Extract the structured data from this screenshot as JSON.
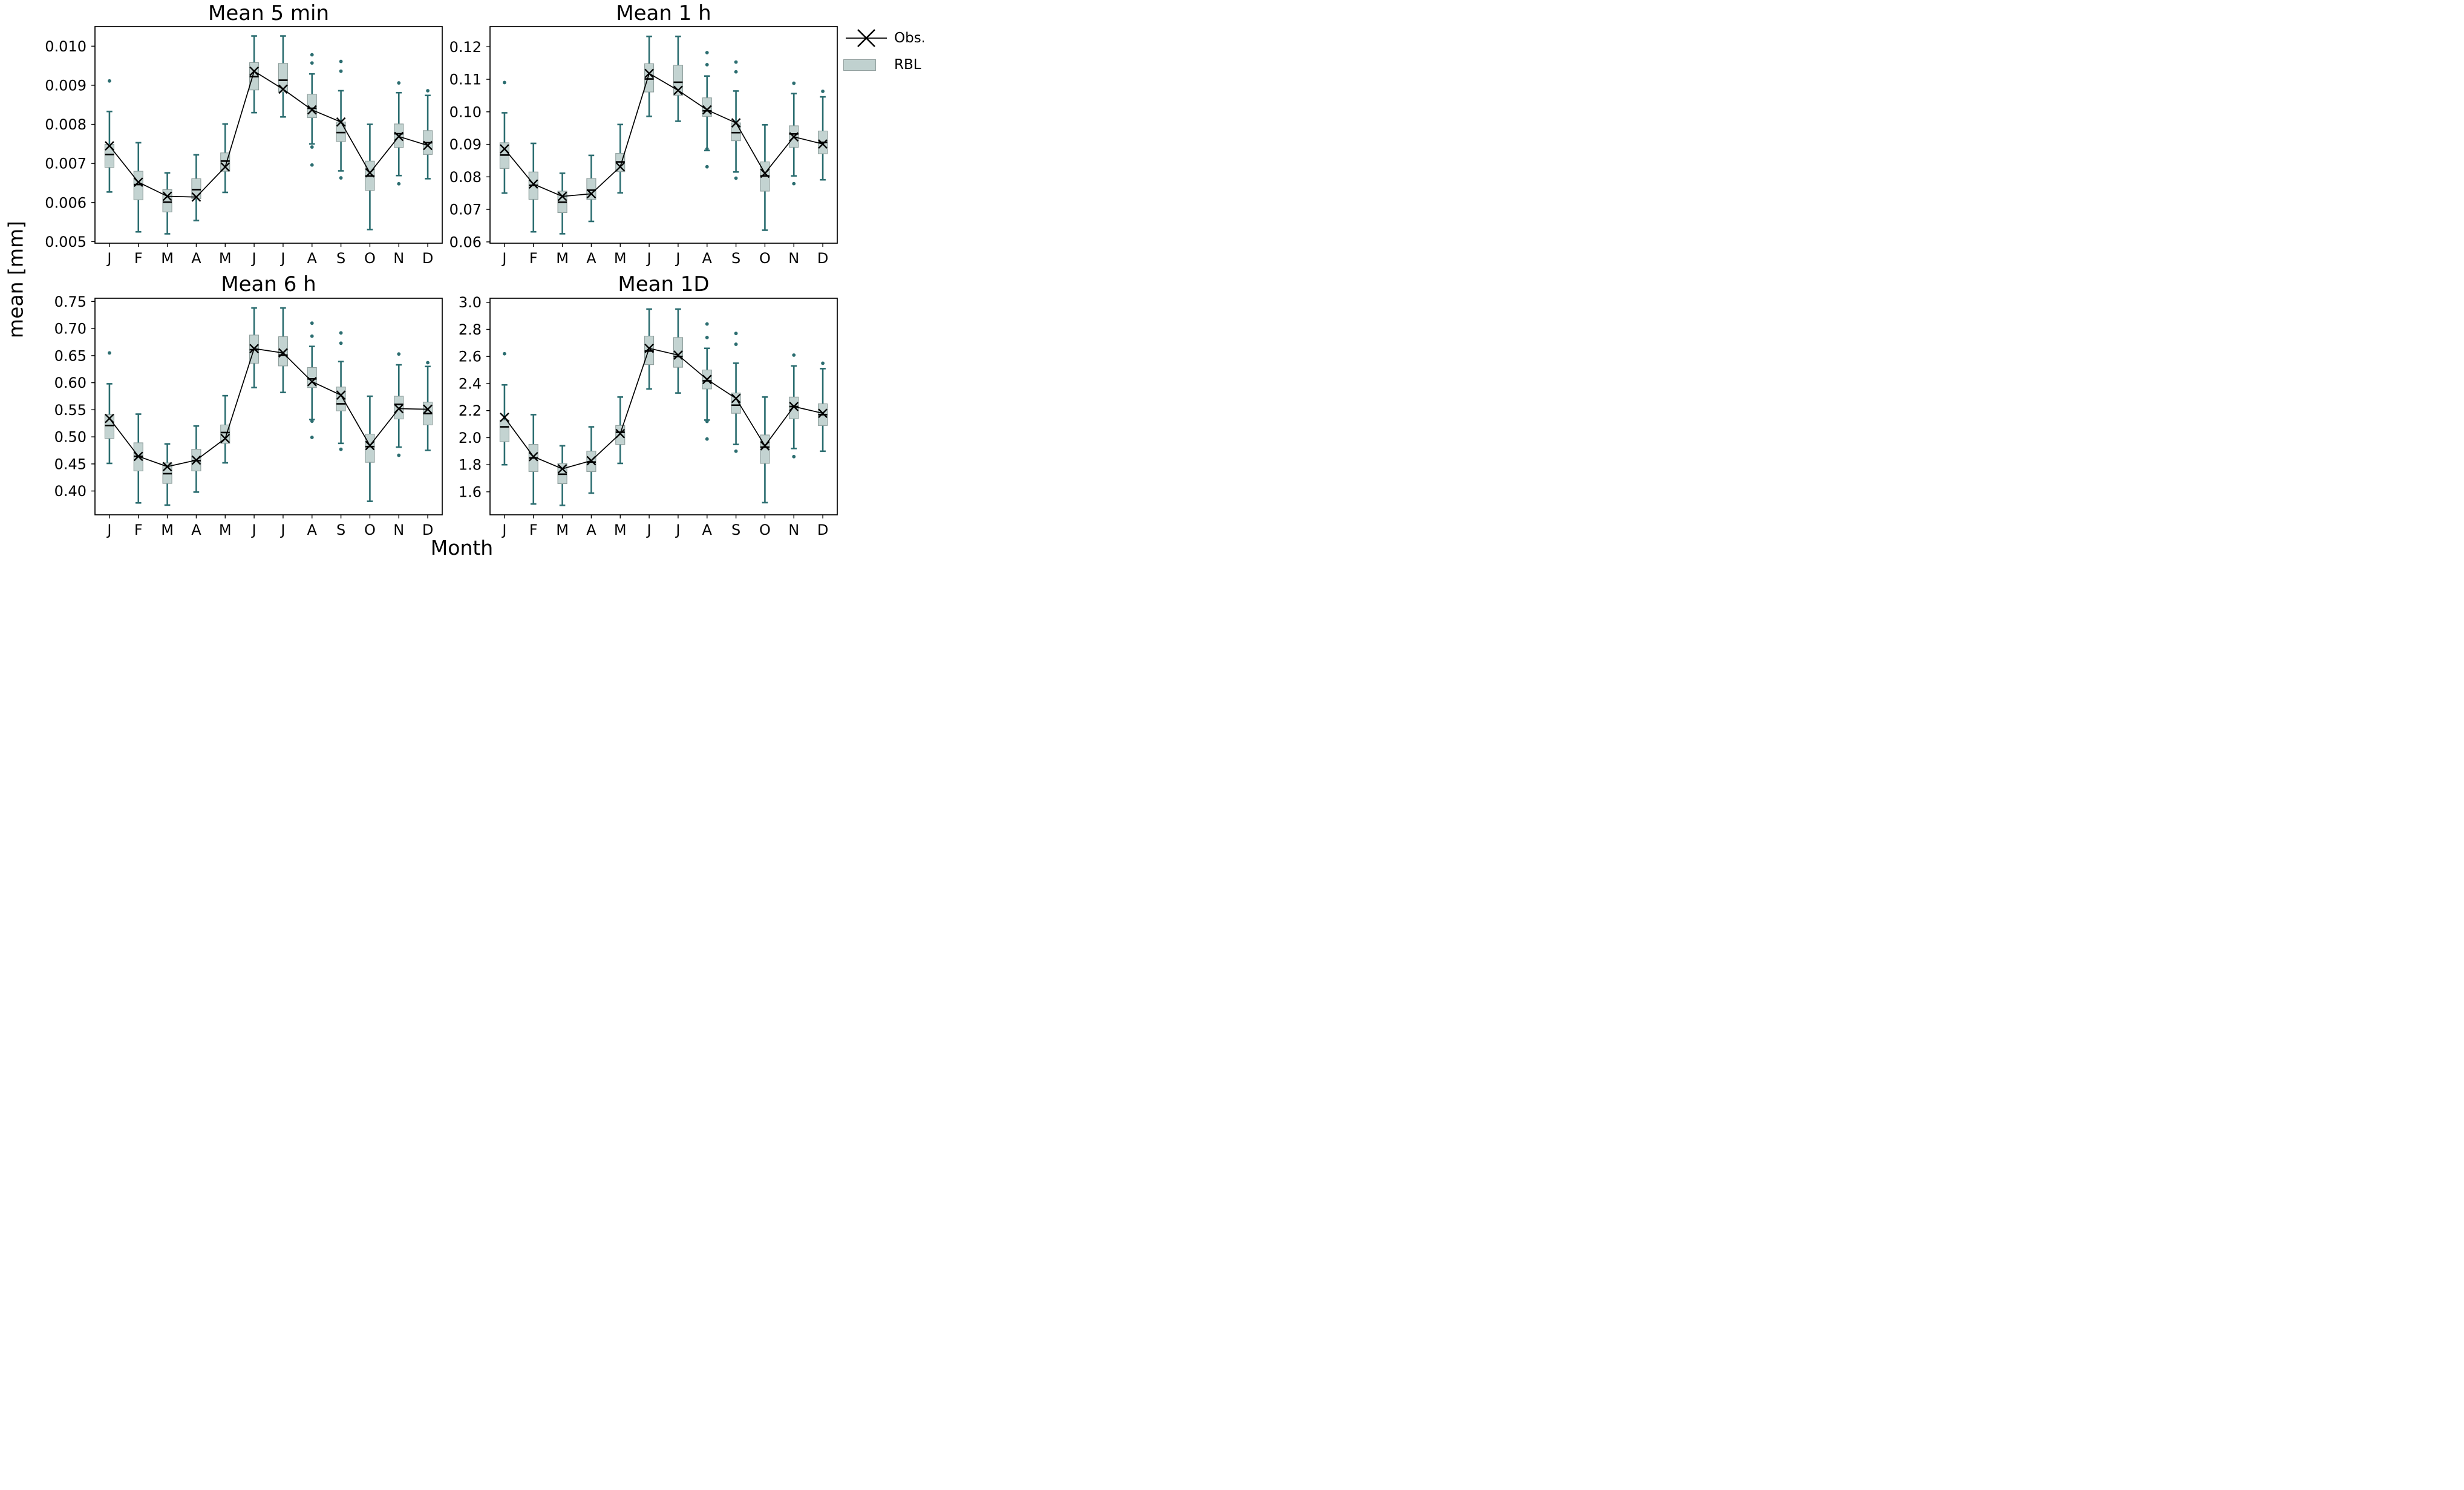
{
  "figure": {
    "ylabel": "mean [mm]",
    "xlabel": "Month",
    "background": "#ffffff"
  },
  "legend": {
    "items": [
      {
        "label": "Obs.",
        "type": "line-x-marker",
        "color": "#000000"
      },
      {
        "label": "RBL",
        "type": "box",
        "fill": "#c0d1cf",
        "edge": "#919f9e"
      }
    ]
  },
  "style": {
    "whisker_color": "#2b6d70",
    "box_fill": "#c3d3d1",
    "box_edge": "#8d9d9b",
    "median_color": "#000000",
    "obs_color": "#000000",
    "axis_color": "#000000"
  },
  "chart_data": {
    "type": "boxplot-grid",
    "legend_position": "upper right outside",
    "grid": false,
    "categories": [
      "J",
      "F",
      "M",
      "A",
      "M",
      "J",
      "J",
      "A",
      "S",
      "O",
      "N",
      "D"
    ],
    "subplots": [
      {
        "title": "Mean 5 min",
        "type": "boxplot",
        "ylim": [
          0.00496,
          0.0105
        ],
        "ytick_values": [
          0.005,
          0.006,
          0.007,
          0.008,
          0.009,
          0.01
        ],
        "ytick_labels": [
          "0.005",
          "0.006",
          "0.007",
          "0.008",
          "0.009",
          "0.010"
        ],
        "boxes": [
          {
            "whislo": 0.00627,
            "q1": 0.0069,
            "med": 0.00723,
            "q3": 0.00749,
            "whishi": 0.00833,
            "mean": 0.00745,
            "fliers": [
              0.00911
            ]
          },
          {
            "whislo": 0.00525,
            "q1": 0.00607,
            "med": 0.00646,
            "q3": 0.0068,
            "whishi": 0.00753,
            "mean": 0.00652,
            "fliers": []
          },
          {
            "whislo": 0.0052,
            "q1": 0.00576,
            "med": 0.00601,
            "q3": 0.00633,
            "whishi": 0.00676,
            "mean": 0.00616,
            "fliers": []
          },
          {
            "whislo": 0.00554,
            "q1": 0.0061,
            "med": 0.00633,
            "q3": 0.00661,
            "whishi": 0.00722,
            "mean": 0.00614,
            "fliers": []
          },
          {
            "whislo": 0.00626,
            "q1": 0.0068,
            "med": 0.00706,
            "q3": 0.00727,
            "whishi": 0.00801,
            "mean": 0.00691,
            "fliers": []
          },
          {
            "whislo": 0.0083,
            "q1": 0.00888,
            "med": 0.00922,
            "q3": 0.00958,
            "whishi": 0.01026,
            "mean": 0.00936,
            "fliers": []
          },
          {
            "whislo": 0.00819,
            "q1": 0.00883,
            "med": 0.00913,
            "q3": 0.00956,
            "whishi": 0.01026,
            "mean": 0.0089,
            "fliers": []
          },
          {
            "whislo": 0.0075,
            "q1": 0.00817,
            "med": 0.00841,
            "q3": 0.00877,
            "whishi": 0.00929,
            "mean": 0.00837,
            "fliers": [
              0.00978,
              0.00957,
              0.00742,
              0.00696
            ]
          },
          {
            "whislo": 0.00681,
            "q1": 0.00756,
            "med": 0.00779,
            "q3": 0.00806,
            "whishi": 0.00886,
            "mean": 0.00806,
            "fliers": [
              0.00961,
              0.00936,
              0.00663
            ]
          },
          {
            "whislo": 0.00531,
            "q1": 0.00631,
            "med": 0.00668,
            "q3": 0.00706,
            "whishi": 0.008,
            "mean": 0.00676,
            "fliers": []
          },
          {
            "whislo": 0.00669,
            "q1": 0.00741,
            "med": 0.00776,
            "q3": 0.00801,
            "whishi": 0.00881,
            "mean": 0.00769,
            "fliers": [
              0.00906,
              0.00648
            ]
          },
          {
            "whislo": 0.00661,
            "q1": 0.00723,
            "med": 0.00753,
            "q3": 0.00784,
            "whishi": 0.00874,
            "mean": 0.00746,
            "fliers": [
              0.00886
            ]
          }
        ]
      },
      {
        "title": "Mean 1 h",
        "type": "boxplot",
        "ylim": [
          0.0596,
          0.1262
        ],
        "ytick_values": [
          0.06,
          0.07,
          0.08,
          0.09,
          0.1,
          0.11,
          0.12
        ],
        "ytick_labels": [
          "0.06",
          "0.07",
          "0.08",
          "0.09",
          "0.10",
          "0.11",
          "0.12"
        ],
        "boxes": [
          {
            "whislo": 0.075,
            "q1": 0.0826,
            "med": 0.0867,
            "q3": 0.0905,
            "whishi": 0.0997,
            "mean": 0.0886,
            "fliers": [
              0.109
            ]
          },
          {
            "whislo": 0.0631,
            "q1": 0.0731,
            "med": 0.0774,
            "q3": 0.0815,
            "whishi": 0.0903,
            "mean": 0.0778,
            "fliers": []
          },
          {
            "whislo": 0.0625,
            "q1": 0.069,
            "med": 0.0722,
            "q3": 0.0756,
            "whishi": 0.0811,
            "mean": 0.074,
            "fliers": []
          },
          {
            "whislo": 0.0663,
            "q1": 0.0731,
            "med": 0.0759,
            "q3": 0.0795,
            "whishi": 0.0866,
            "mean": 0.0748,
            "fliers": []
          },
          {
            "whislo": 0.0751,
            "q1": 0.0816,
            "med": 0.0846,
            "q3": 0.0872,
            "whishi": 0.0961,
            "mean": 0.0831,
            "fliers": []
          },
          {
            "whislo": 0.0986,
            "q1": 0.1061,
            "med": 0.1101,
            "q3": 0.1148,
            "whishi": 0.1232,
            "mean": 0.1118,
            "fliers": []
          },
          {
            "whislo": 0.0971,
            "q1": 0.1051,
            "med": 0.1091,
            "q3": 0.1143,
            "whishi": 0.1232,
            "mean": 0.1066,
            "fliers": []
          },
          {
            "whislo": 0.0881,
            "q1": 0.0986,
            "med": 0.1003,
            "q3": 0.1043,
            "whishi": 0.111,
            "mean": 0.1006,
            "fliers": [
              0.1182,
              0.1145,
              0.0886,
              0.0831
            ]
          },
          {
            "whislo": 0.0815,
            "q1": 0.0911,
            "med": 0.0936,
            "q3": 0.0966,
            "whishi": 0.1064,
            "mean": 0.0966,
            "fliers": [
              0.1153,
              0.1123,
              0.0796
            ]
          },
          {
            "whislo": 0.0636,
            "q1": 0.0756,
            "med": 0.0803,
            "q3": 0.0846,
            "whishi": 0.096,
            "mean": 0.0811,
            "fliers": []
          },
          {
            "whislo": 0.0803,
            "q1": 0.0891,
            "med": 0.0932,
            "q3": 0.0957,
            "whishi": 0.1056,
            "mean": 0.0923,
            "fliers": [
              0.1088,
              0.0779
            ]
          },
          {
            "whislo": 0.0791,
            "q1": 0.0871,
            "med": 0.0906,
            "q3": 0.0941,
            "whishi": 0.1046,
            "mean": 0.0901,
            "fliers": [
              0.1063
            ]
          }
        ]
      },
      {
        "title": "Mean 6 h",
        "type": "boxplot",
        "ylim": [
          0.356,
          0.756
        ],
        "ytick_values": [
          0.4,
          0.45,
          0.5,
          0.55,
          0.6,
          0.65,
          0.7,
          0.75
        ],
        "ytick_labels": [
          "0.40",
          "0.45",
          "0.50",
          "0.55",
          "0.60",
          "0.65",
          "0.70",
          "0.75"
        ],
        "boxes": [
          {
            "whislo": 0.451,
            "q1": 0.497,
            "med": 0.521,
            "q3": 0.541,
            "whishi": 0.598,
            "mean": 0.534,
            "fliers": [
              0.655
            ]
          },
          {
            "whislo": 0.378,
            "q1": 0.437,
            "med": 0.464,
            "q3": 0.489,
            "whishi": 0.542,
            "mean": 0.464,
            "fliers": []
          },
          {
            "whislo": 0.374,
            "q1": 0.414,
            "med": 0.432,
            "q3": 0.452,
            "whishi": 0.487,
            "mean": 0.445,
            "fliers": []
          },
          {
            "whislo": 0.398,
            "q1": 0.437,
            "med": 0.456,
            "q3": 0.477,
            "whishi": 0.52,
            "mean": 0.457,
            "fliers": []
          },
          {
            "whislo": 0.452,
            "q1": 0.488,
            "med": 0.508,
            "q3": 0.522,
            "whishi": 0.576,
            "mean": 0.497,
            "fliers": []
          },
          {
            "whislo": 0.591,
            "q1": 0.636,
            "med": 0.661,
            "q3": 0.688,
            "whishi": 0.738,
            "mean": 0.663,
            "fliers": []
          },
          {
            "whislo": 0.582,
            "q1": 0.631,
            "med": 0.651,
            "q3": 0.685,
            "whishi": 0.738,
            "mean": 0.655,
            "fliers": []
          },
          {
            "whislo": 0.532,
            "q1": 0.591,
            "med": 0.607,
            "q3": 0.628,
            "whishi": 0.667,
            "mean": 0.602,
            "fliers": [
              0.71,
              0.686,
              0.529,
              0.499
            ]
          },
          {
            "whislo": 0.488,
            "q1": 0.548,
            "med": 0.561,
            "q3": 0.592,
            "whishi": 0.639,
            "mean": 0.577,
            "fliers": [
              0.692,
              0.673,
              0.477
            ]
          },
          {
            "whislo": 0.381,
            "q1": 0.453,
            "med": 0.482,
            "q3": 0.505,
            "whishi": 0.575,
            "mean": 0.484,
            "fliers": []
          },
          {
            "whislo": 0.481,
            "q1": 0.533,
            "med": 0.56,
            "q3": 0.575,
            "whishi": 0.633,
            "mean": 0.552,
            "fliers": [
              0.653,
              0.466
            ]
          },
          {
            "whislo": 0.475,
            "q1": 0.522,
            "med": 0.543,
            "q3": 0.564,
            "whishi": 0.63,
            "mean": 0.551,
            "fliers": [
              0.637
            ]
          }
        ]
      },
      {
        "title": "Mean 1D",
        "type": "boxplot",
        "ylim": [
          1.43,
          3.03
        ],
        "ytick_values": [
          1.6,
          1.8,
          2.0,
          2.2,
          2.4,
          2.6,
          2.8,
          3.0
        ],
        "ytick_labels": [
          "1.6",
          "1.8",
          "2.0",
          "2.2",
          "2.4",
          "2.6",
          "2.8",
          "3.0"
        ],
        "boxes": [
          {
            "whislo": 1.8,
            "q1": 1.97,
            "med": 2.08,
            "q3": 2.13,
            "whishi": 2.39,
            "mean": 2.15,
            "fliers": [
              2.62
            ]
          },
          {
            "whislo": 1.51,
            "q1": 1.75,
            "med": 1.85,
            "q3": 1.95,
            "whishi": 2.17,
            "mean": 1.86,
            "fliers": []
          },
          {
            "whislo": 1.5,
            "q1": 1.66,
            "med": 1.73,
            "q3": 1.81,
            "whishi": 1.94,
            "mean": 1.77,
            "fliers": []
          },
          {
            "whislo": 1.59,
            "q1": 1.75,
            "med": 1.82,
            "q3": 1.9,
            "whishi": 2.08,
            "mean": 1.83,
            "fliers": []
          },
          {
            "whislo": 1.81,
            "q1": 1.95,
            "med": 2.04,
            "q3": 2.09,
            "whishi": 2.3,
            "mean": 2.03,
            "fliers": []
          },
          {
            "whislo": 2.36,
            "q1": 2.54,
            "med": 2.64,
            "q3": 2.75,
            "whishi": 2.95,
            "mean": 2.66,
            "fliers": []
          },
          {
            "whislo": 2.33,
            "q1": 2.52,
            "med": 2.6,
            "q3": 2.74,
            "whishi": 2.95,
            "mean": 2.61,
            "fliers": []
          },
          {
            "whislo": 2.13,
            "q1": 2.36,
            "med": 2.42,
            "q3": 2.5,
            "whishi": 2.66,
            "mean": 2.43,
            "fliers": [
              2.84,
              2.74,
              2.12,
              1.99
            ]
          },
          {
            "whislo": 1.95,
            "q1": 2.18,
            "med": 2.24,
            "q3": 2.33,
            "whishi": 2.55,
            "mean": 2.29,
            "fliers": [
              2.77,
              2.69,
              1.9
            ]
          },
          {
            "whislo": 1.52,
            "q1": 1.81,
            "med": 1.93,
            "q3": 2.02,
            "whishi": 2.3,
            "mean": 1.94,
            "fliers": []
          },
          {
            "whislo": 1.92,
            "q1": 2.14,
            "med": 2.23,
            "q3": 2.3,
            "whishi": 2.53,
            "mean": 2.23,
            "fliers": [
              2.61,
              1.86
            ]
          },
          {
            "whislo": 1.9,
            "q1": 2.09,
            "med": 2.17,
            "q3": 2.25,
            "whishi": 2.51,
            "mean": 2.18,
            "fliers": [
              2.55
            ]
          }
        ]
      }
    ]
  }
}
